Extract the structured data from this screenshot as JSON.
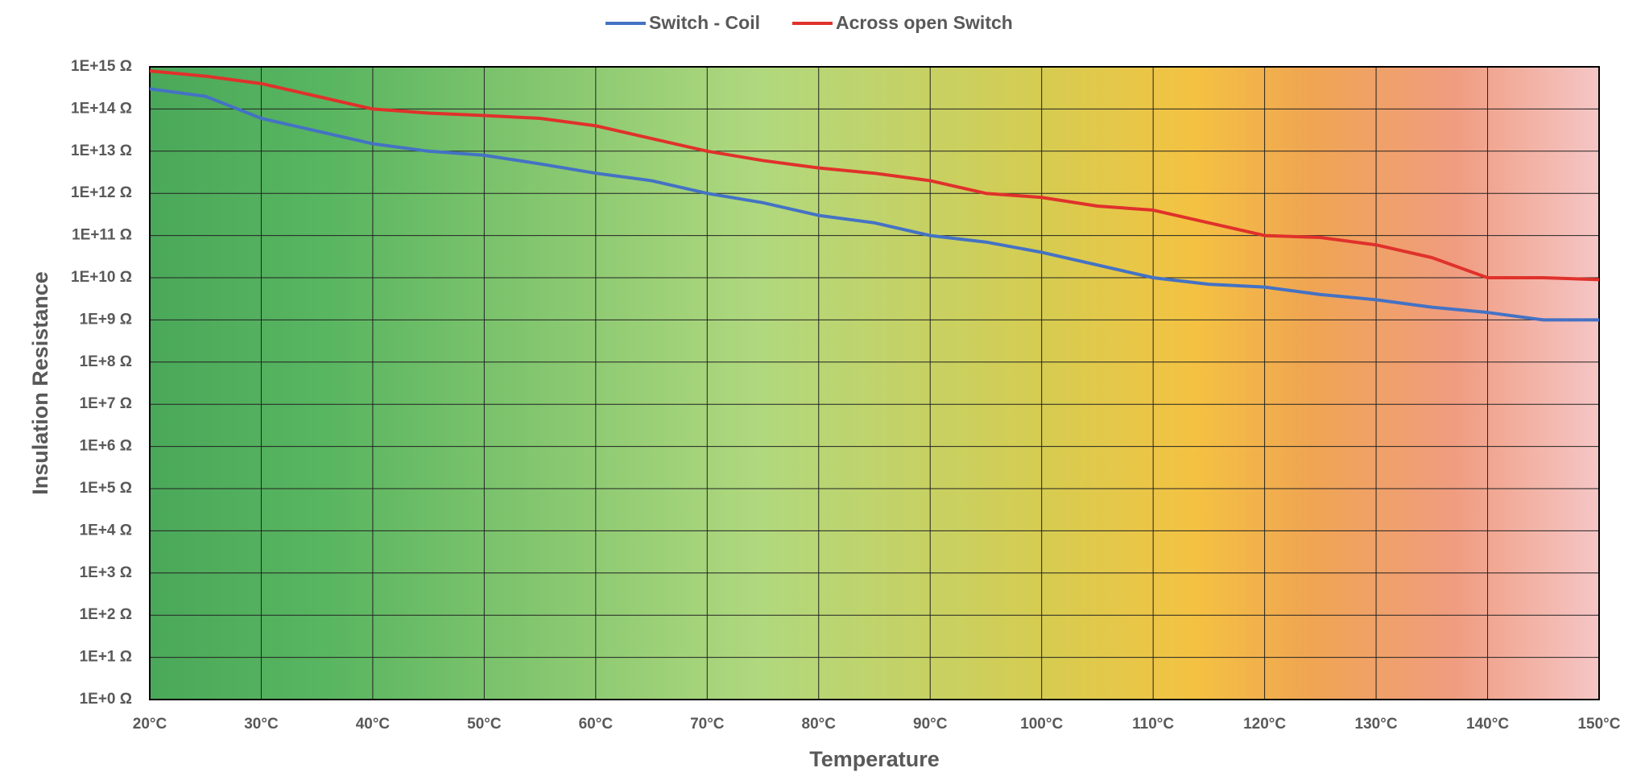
{
  "chart_data": {
    "type": "line",
    "x_label": "Temperature",
    "y_label": "Insulation Resistance",
    "x": [
      20,
      25,
      30,
      35,
      40,
      45,
      50,
      55,
      60,
      65,
      70,
      75,
      80,
      85,
      90,
      95,
      100,
      105,
      110,
      115,
      120,
      125,
      130,
      135,
      140,
      145,
      150
    ],
    "series": [
      {
        "name": "Switch - Coil",
        "color": "#4472c4",
        "values": [
          300000000000000.0,
          200000000000000.0,
          60000000000000.0,
          30000000000000.0,
          15000000000000.0,
          10000000000000.0,
          8000000000000.0,
          5000000000000.0,
          3000000000000.0,
          2000000000000.0,
          1000000000000.0,
          600000000000.0,
          300000000000.0,
          200000000000.0,
          100000000000.0,
          70000000000.0,
          40000000000.0,
          20000000000.0,
          10000000000.0,
          7000000000.0,
          6000000000.0,
          4000000000.0,
          3000000000.0,
          2000000000.0,
          1500000000.0,
          1000000000.0,
          1000000000.0
        ]
      },
      {
        "name": "Across open Switch",
        "color": "#e0312b",
        "values": [
          800000000000000.0,
          600000000000000.0,
          400000000000000.0,
          200000000000000.0,
          100000000000000.0,
          80000000000000.0,
          70000000000000.0,
          60000000000000.0,
          40000000000000.0,
          20000000000000.0,
          10000000000000.0,
          6000000000000.0,
          4000000000000.0,
          3000000000000.0,
          2000000000000.0,
          1000000000000.0,
          800000000000.0,
          500000000000.0,
          400000000000.0,
          200000000000.0,
          100000000000.0,
          90000000000.0,
          60000000000.0,
          30000000000.0,
          10000000000.0,
          10000000000.0,
          9000000000.0
        ]
      }
    ],
    "xlim": [
      20,
      150
    ],
    "xticks": [
      {
        "value": 20,
        "label": "20°C"
      },
      {
        "value": 30,
        "label": "30°C"
      },
      {
        "value": 40,
        "label": "40°C"
      },
      {
        "value": 50,
        "label": "50°C"
      },
      {
        "value": 60,
        "label": "60°C"
      },
      {
        "value": 70,
        "label": "70°C"
      },
      {
        "value": 80,
        "label": "80°C"
      },
      {
        "value": 90,
        "label": "90°C"
      },
      {
        "value": 100,
        "label": "100°C"
      },
      {
        "value": 110,
        "label": "110°C"
      },
      {
        "value": 120,
        "label": "120°C"
      },
      {
        "value": 130,
        "label": "130°C"
      },
      {
        "value": 140,
        "label": "140°C"
      },
      {
        "value": 150,
        "label": "150°C"
      }
    ],
    "ylim": [
      1,
      1000000000000000.0
    ],
    "yticks": [
      {
        "value": 1,
        "label": "1E+0 Ω"
      },
      {
        "value": 10,
        "label": "1E+1 Ω"
      },
      {
        "value": 100,
        "label": "1E+2 Ω"
      },
      {
        "value": 1000,
        "label": "1E+3 Ω"
      },
      {
        "value": 10000,
        "label": "1E+4 Ω"
      },
      {
        "value": 100000,
        "label": "1E+5 Ω"
      },
      {
        "value": 1000000,
        "label": "1E+6 Ω"
      },
      {
        "value": 10000000,
        "label": "1E+7 Ω"
      },
      {
        "value": 100000000,
        "label": "1E+8 Ω"
      },
      {
        "value": 1000000000,
        "label": "1E+9 Ω"
      },
      {
        "value": 10000000000,
        "label": "1E+10 Ω"
      },
      {
        "value": 100000000000,
        "label": "1E+11 Ω"
      },
      {
        "value": 1000000000000,
        "label": "1E+12 Ω"
      },
      {
        "value": 10000000000000,
        "label": "1E+13 Ω"
      },
      {
        "value": 100000000000000,
        "label": "1E+14 Ω"
      },
      {
        "value": 1000000000000000,
        "label": "1E+15 Ω"
      }
    ],
    "ylog": true,
    "grid": true,
    "legend": "top"
  }
}
